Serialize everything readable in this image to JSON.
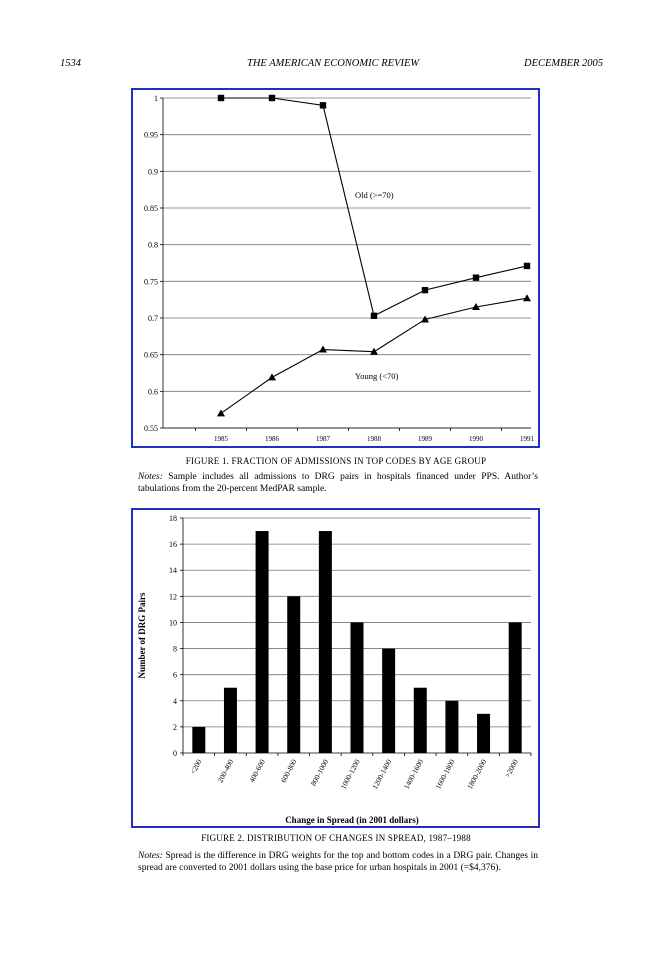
{
  "header": {
    "page_number": "1534",
    "journal": "THE AMERICAN ECONOMIC REVIEW",
    "date": "DECEMBER 2005"
  },
  "figure1": {
    "caption": "FIGURE 1. FRACTION OF ADMISSIONS IN TOP CODES BY AGE GROUP",
    "notes_label": "Notes:",
    "notes_text": "Sample includes all admissions to DRG pairs in hospitals financed under PPS. Author’s tabulations from the 20-percent MedPAR sample."
  },
  "figure2": {
    "caption": "FIGURE 2. DISTRIBUTION OF CHANGES IN SPREAD, 1987–1988",
    "notes_label": "Notes:",
    "notes_text": "Spread is the difference in DRG weights for the top and bottom codes in a DRG pair. Changes in spread are converted to 2001 dollars using the base price for urban hospitals in 2001 (=$4,376)."
  },
  "chart_data": [
    {
      "type": "line",
      "title": "",
      "xlabel": "",
      "ylabel": "",
      "x": [
        "1985",
        "1986",
        "1987",
        "1988",
        "1989",
        "1990",
        "1991"
      ],
      "ylim": [
        0.55,
        1
      ],
      "y_ticks": [
        "0.55",
        "0.6",
        "0.65",
        "0.7",
        "0.75",
        "0.8",
        "0.85",
        "0.9",
        "0.95",
        "1"
      ],
      "grid": true,
      "series": [
        {
          "name": "Old (>=70)",
          "marker": "square",
          "values": [
            1.0,
            1.0,
            0.99,
            0.703,
            0.738,
            0.755,
            0.771
          ]
        },
        {
          "name": "Young (<70)",
          "marker": "triangle",
          "values": [
            0.57,
            0.619,
            0.657,
            0.654,
            0.698,
            0.715,
            0.727
          ]
        }
      ]
    },
    {
      "type": "bar",
      "title": "",
      "xlabel": "Change in Spread (in 2001 dollars)",
      "ylabel": "Number of DRG Pairs",
      "categories": [
        "<200",
        "200-400",
        "400-600",
        "600-800",
        "800-1000",
        "1000-1200",
        "1200-1400",
        "1400-1600",
        "1600-1800",
        "1800-2000",
        ">2000"
      ],
      "values": [
        2,
        5,
        17,
        12,
        17,
        10,
        8,
        5,
        4,
        3,
        10
      ],
      "ylim": [
        0,
        18
      ],
      "y_ticks": [
        "0",
        "2",
        "4",
        "6",
        "8",
        "10",
        "12",
        "14",
        "16",
        "18"
      ],
      "grid": true,
      "bar_color": "#000000"
    }
  ]
}
